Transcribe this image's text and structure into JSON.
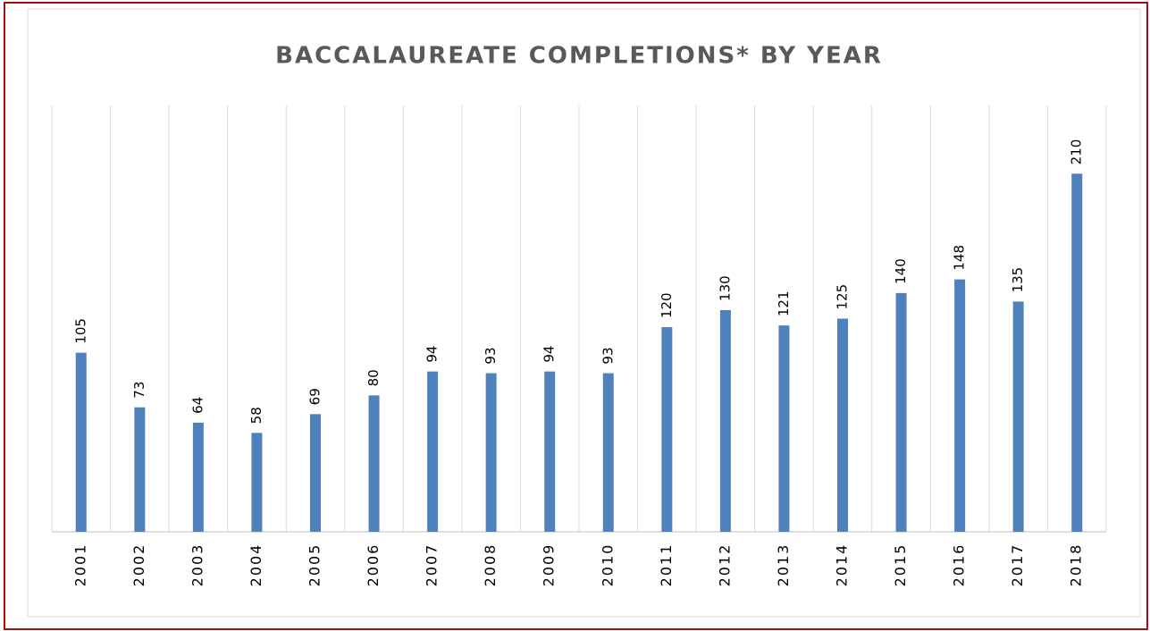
{
  "chart_data": {
    "type": "bar",
    "title": "BACCALAUREATE COMPLETIONS* BY YEAR",
    "categories": [
      "2001",
      "2002",
      "2003",
      "2004",
      "2005",
      "2006",
      "2007",
      "2008",
      "2009",
      "2010",
      "2011",
      "2012",
      "2013",
      "2014",
      "2015",
      "2016",
      "2017",
      "2018"
    ],
    "values": [
      105,
      73,
      64,
      58,
      69,
      80,
      94,
      93,
      94,
      93,
      120,
      130,
      121,
      125,
      140,
      148,
      135,
      210
    ],
    "color": "#4f81bd",
    "ylim": [
      0,
      250
    ],
    "grid": true
  }
}
